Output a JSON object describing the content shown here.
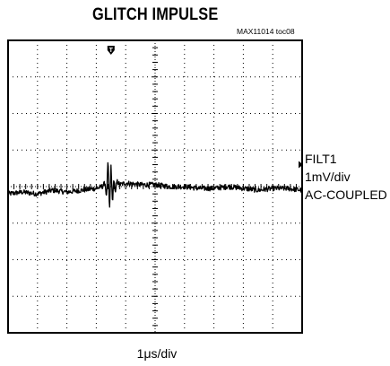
{
  "chart_data": {
    "type": "line",
    "title": "GLITCH IMPULSE",
    "figure_id": "MAX11014 toc08",
    "xlabel": "1μs/div",
    "channel": {
      "name": "FILT1",
      "scale": "1mV/div",
      "coupling": "AC-COUPLED"
    },
    "grid": true,
    "x_divisions": 10,
    "y_divisions": 8,
    "trigger_marker_division": 3.5,
    "ground_marker_division": 0.6,
    "x_div": [
      0,
      0.5,
      1,
      1.5,
      2,
      2.5,
      3,
      3.2,
      3.3,
      3.35,
      3.4,
      3.45,
      3.5,
      3.55,
      3.6,
      3.65,
      3.7,
      3.8,
      4,
      4.5,
      5,
      5.5,
      6,
      6.5,
      7,
      7.5,
      8,
      8.5,
      9,
      9.5,
      10
    ],
    "y_div": [
      -0.2,
      -0.15,
      -0.2,
      -0.1,
      -0.15,
      -0.1,
      -0.05,
      0,
      0.1,
      -0.3,
      0.75,
      -0.7,
      0.55,
      -0.45,
      0.25,
      -0.2,
      0.15,
      0.05,
      0.1,
      0.05,
      0.05,
      0.0,
      0.0,
      -0.05,
      -0.05,
      0.0,
      -0.05,
      -0.1,
      -0.05,
      -0.05,
      -0.1
    ],
    "noise_amplitude_div": 0.07
  },
  "colors": {
    "trace": "#000000",
    "grid": "#000000",
    "frame": "#000000"
  }
}
